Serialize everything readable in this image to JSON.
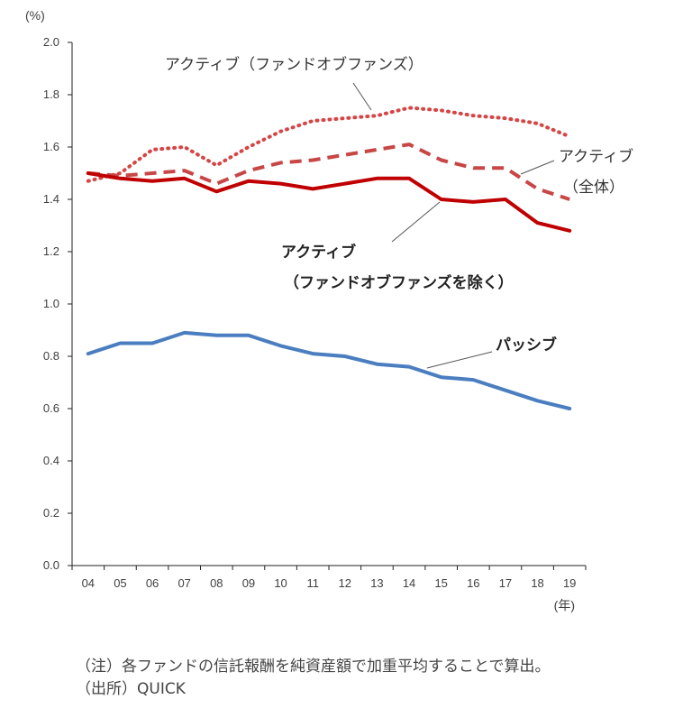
{
  "chart_data": {
    "type": "line",
    "ylabel": "(%)",
    "xunit": "(年)",
    "ylim": [
      0,
      2.0
    ],
    "yticks": [
      "0.0",
      "0.2",
      "0.4",
      "0.6",
      "0.8",
      "1.0",
      "1.2",
      "1.4",
      "1.6",
      "1.8",
      "2.0"
    ],
    "categories": [
      "04",
      "05",
      "06",
      "07",
      "08",
      "09",
      "10",
      "11",
      "12",
      "13",
      "14",
      "15",
      "16",
      "17",
      "18",
      "19"
    ],
    "series": [
      {
        "name": "アクティブ（ファンドオブファンズ）",
        "style": "dotted",
        "color": "#d64545",
        "values": [
          1.47,
          1.5,
          1.59,
          1.6,
          1.53,
          1.6,
          1.66,
          1.7,
          1.71,
          1.72,
          1.75,
          1.74,
          1.72,
          1.71,
          1.69,
          1.64
        ]
      },
      {
        "name": "アクティブ（全体）",
        "style": "dashed",
        "color": "#c84646",
        "values": [
          1.5,
          1.49,
          1.5,
          1.51,
          1.46,
          1.51,
          1.54,
          1.55,
          1.57,
          1.59,
          1.61,
          1.55,
          1.52,
          1.52,
          1.44,
          1.4
        ]
      },
      {
        "name": "アクティブ（ファンドオブファンズを除く）",
        "style": "solid",
        "color": "#c00000",
        "values": [
          1.5,
          1.48,
          1.47,
          1.48,
          1.43,
          1.47,
          1.46,
          1.44,
          1.46,
          1.48,
          1.48,
          1.4,
          1.39,
          1.4,
          1.31,
          1.28
        ]
      },
      {
        "name": "パッシブ",
        "style": "solid",
        "color": "#4a7ec0",
        "values": [
          0.81,
          0.85,
          0.85,
          0.89,
          0.88,
          0.88,
          0.84,
          0.81,
          0.8,
          0.77,
          0.76,
          0.72,
          0.71,
          0.67,
          0.63,
          0.6
        ]
      }
    ],
    "annotations": {
      "fof": "アクティブ（ファンドオブファンズ）",
      "all_line1": "アクティブ",
      "all_line2": "（全体）",
      "ex_line1": "アクティブ",
      "ex_line2": "（ファンドオブファンズを除く）",
      "passive": "パッシブ"
    },
    "grid": false,
    "legend": "none"
  },
  "notes": {
    "note": "（注）各ファンドの信託報酬を純資産額で加重平均することで算出。",
    "source": "（出所）QUICK"
  }
}
